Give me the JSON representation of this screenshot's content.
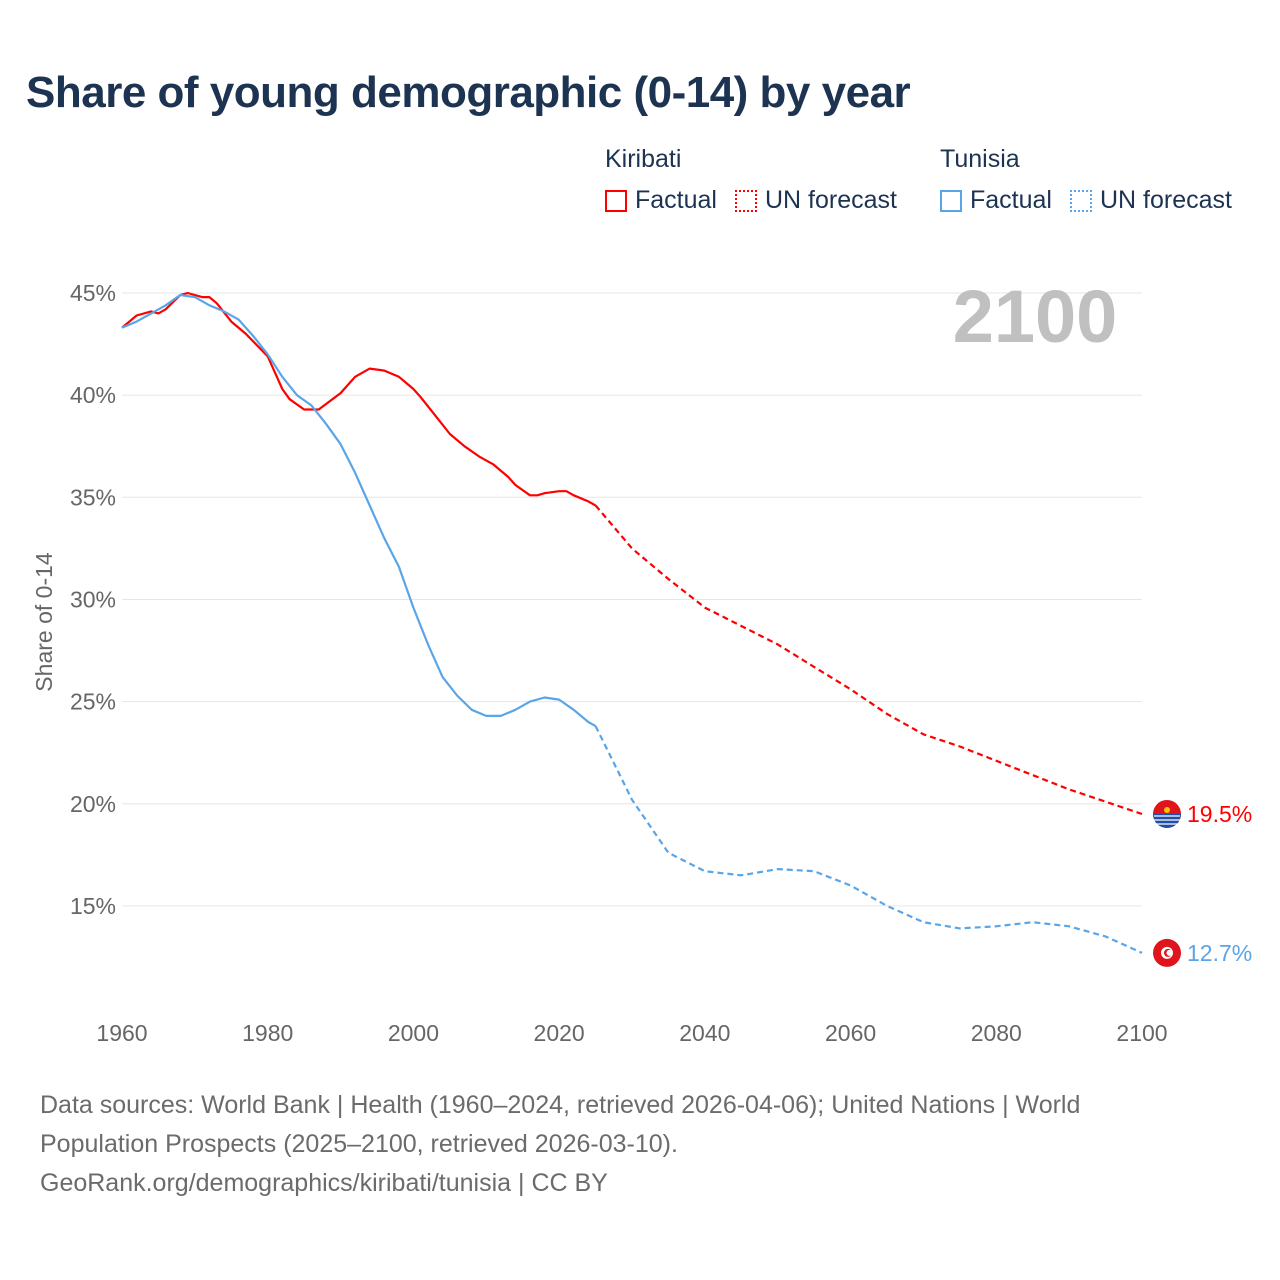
{
  "title": "Share of young demographic (0-14) by year",
  "legend": {
    "groups": [
      {
        "name": "Kiribati",
        "color": "#ff0000",
        "items": [
          "Factual",
          "UN forecast"
        ]
      },
      {
        "name": "Tunisia",
        "color": "#5aa5e8",
        "items": [
          "Factual",
          "UN forecast"
        ]
      }
    ]
  },
  "year_watermark": "2100",
  "footer": {
    "line1": "Data sources: World Bank | Health (1960–2024, retrieved 2026-04-06); United Nations | World",
    "line2": "Population Prospects (2025–2100, retrieved 2026-03-10).",
    "line3": "GeoRank.org/demographics/kiribati/tunisia | CC BY"
  },
  "chart_data": {
    "type": "line",
    "title": "Share of young demographic (0-14) by year",
    "xlabel": "",
    "ylabel": "Share of 0-14",
    "xlim": [
      1960,
      2100
    ],
    "ylim": [
      11,
      46
    ],
    "x_ticks": [
      1960,
      1980,
      2000,
      2020,
      2040,
      2060,
      2080,
      2100
    ],
    "x_tick_labels": [
      "1960",
      "1980",
      "2000",
      "2020",
      "2040",
      "2060",
      "2080",
      "2100"
    ],
    "y_ticks": [
      15,
      20,
      25,
      30,
      35,
      40,
      45
    ],
    "y_tick_labels": [
      "15%",
      "20%",
      "25%",
      "30%",
      "35%",
      "40%",
      "45%"
    ],
    "grid": true,
    "legend_position": "top-right",
    "series": [
      {
        "name": "Kiribati Factual",
        "color": "#ff0000",
        "dash": false,
        "x": [
          1960,
          1962,
          1964,
          1965,
          1966,
          1968,
          1969,
          1971,
          1972,
          1973,
          1975,
          1977,
          1980,
          1982,
          1983,
          1985,
          1987,
          1990,
          1992,
          1994,
          1996,
          1998,
          2000,
          2001,
          2003,
          2005,
          2007,
          2009,
          2011,
          2013,
          2014,
          2016,
          2017,
          2018,
          2020,
          2021,
          2022,
          2024,
          2025
        ],
        "y": [
          43.3,
          43.9,
          44.1,
          44.0,
          44.2,
          44.9,
          45.0,
          44.8,
          44.8,
          44.5,
          43.6,
          43.0,
          41.9,
          40.3,
          39.8,
          39.3,
          39.3,
          40.1,
          40.9,
          41.3,
          41.2,
          40.9,
          40.3,
          39.9,
          39.0,
          38.1,
          37.5,
          37.0,
          36.6,
          36.0,
          35.6,
          35.1,
          35.1,
          35.2,
          35.3,
          35.3,
          35.1,
          34.8,
          34.6
        ]
      },
      {
        "name": "Kiribati UN forecast",
        "color": "#ff0000",
        "dash": true,
        "x": [
          2025,
          2030,
          2035,
          2040,
          2045,
          2050,
          2055,
          2060,
          2065,
          2070,
          2075,
          2080,
          2085,
          2090,
          2095,
          2100
        ],
        "y": [
          34.6,
          32.5,
          31.0,
          29.6,
          28.7,
          27.8,
          26.7,
          25.6,
          24.4,
          23.4,
          22.8,
          22.1,
          21.4,
          20.7,
          20.1,
          19.5
        ]
      },
      {
        "name": "Tunisia Factual",
        "color": "#5aa5e8",
        "dash": false,
        "x": [
          1960,
          1962,
          1964,
          1966,
          1968,
          1970,
          1972,
          1974,
          1976,
          1978,
          1980,
          1982,
          1984,
          1986,
          1988,
          1990,
          1992,
          1994,
          1996,
          1998,
          2000,
          2002,
          2004,
          2006,
          2008,
          2010,
          2012,
          2014,
          2016,
          2018,
          2020,
          2022,
          2024,
          2025
        ],
        "y": [
          43.3,
          43.6,
          44.0,
          44.4,
          44.9,
          44.8,
          44.4,
          44.1,
          43.7,
          42.9,
          42.0,
          40.9,
          40.0,
          39.5,
          38.6,
          37.6,
          36.2,
          34.6,
          33.0,
          31.6,
          29.6,
          27.8,
          26.2,
          25.3,
          24.6,
          24.3,
          24.3,
          24.6,
          25.0,
          25.2,
          25.1,
          24.6,
          24.0,
          23.8
        ]
      },
      {
        "name": "Tunisia UN forecast",
        "color": "#5aa5e8",
        "dash": true,
        "x": [
          2025,
          2030,
          2035,
          2040,
          2045,
          2050,
          2055,
          2060,
          2065,
          2070,
          2075,
          2080,
          2085,
          2090,
          2095,
          2100
        ],
        "y": [
          23.8,
          20.2,
          17.6,
          16.7,
          16.5,
          16.8,
          16.7,
          16.0,
          15.0,
          14.2,
          13.9,
          14.0,
          14.2,
          14.0,
          13.5,
          12.7
        ]
      }
    ],
    "end_labels": [
      {
        "country": "Kiribati",
        "value": 19.5,
        "label": "19.5%",
        "color": "#ff0000"
      },
      {
        "country": "Tunisia",
        "value": 12.7,
        "label": "12.7%",
        "color": "#5aa5e8"
      }
    ]
  }
}
